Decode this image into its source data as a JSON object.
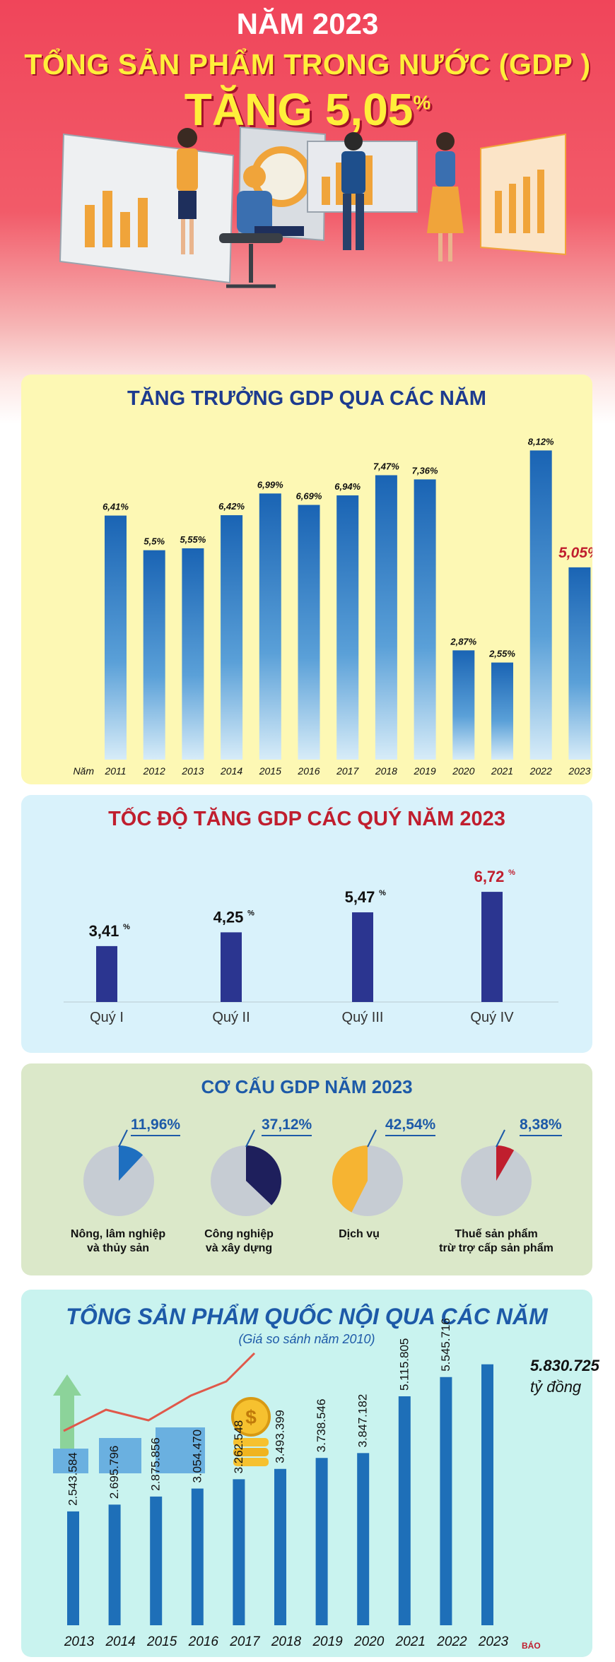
{
  "header": {
    "year_line": "NĂM 2023",
    "title": "TỔNG SẢN PHẨM TRONG NƯỚC (GDP )",
    "growth_text": "TĂNG 5,05",
    "growth_unit": "%"
  },
  "colors": {
    "header_bg": "#f0455a",
    "title_yellow": "#ffef3a",
    "bar_blue": "#1e6fb8",
    "quarter_bar": "#2b3590",
    "highlight_red": "#c01e2e",
    "pie_grey": "#c6ccd3"
  },
  "panel_annual": {
    "title": "TĂNG TRƯỞNG GDP QUA CÁC NĂM",
    "axis_prefix": "Năm"
  },
  "panel_quarter": {
    "title": "TỐC ĐỘ TĂNG GDP CÁC QUÝ NĂM 2023"
  },
  "panel_structure": {
    "title": "CƠ CẤU GDP NĂM 2023"
  },
  "panel_output": {
    "title": "TỔNG SẢN PHẨM QUỐC NỘI QUA CÁC NĂM",
    "subtitle": "(Giá so sánh năm 2010)",
    "highlight_value": "5.830.725",
    "highlight_unit": "tỷ đồng"
  },
  "logo": "BÁO",
  "chart_data": [
    {
      "type": "bar",
      "title": "TĂNG TRƯỞNG GDP QUA CÁC NĂM",
      "categories": [
        "2011",
        "2012",
        "2013",
        "2014",
        "2015",
        "2016",
        "2017",
        "2018",
        "2019",
        "2020",
        "2021",
        "2022",
        "2023"
      ],
      "values": [
        6.41,
        5.5,
        5.55,
        6.42,
        6.99,
        6.69,
        6.94,
        7.47,
        7.36,
        2.87,
        2.55,
        8.12,
        5.05
      ],
      "labels": [
        "6,41%",
        "5,5%",
        "5,55%",
        "6,42%",
        "6,99%",
        "6,69%",
        "6,94%",
        "7,47%",
        "7,36%",
        "2,87%",
        "2,55%",
        "8,12%",
        "5,05%"
      ],
      "xlabel": "Năm",
      "ylabel": "",
      "ylim": [
        0,
        8.5
      ],
      "grid": false
    },
    {
      "type": "bar",
      "title": "TỐC ĐỘ TĂNG GDP CÁC QUÝ NĂM 2023",
      "categories": [
        "Quý I",
        "Quý II",
        "Quý III",
        "Quý IV"
      ],
      "values": [
        3.41,
        4.25,
        5.47,
        6.72
      ],
      "labels": [
        "3,41",
        "4,25",
        "5,47",
        "6,72"
      ],
      "unit": "%",
      "ylim": [
        0,
        7.5
      ],
      "grid": false
    },
    {
      "type": "pie",
      "title": "CƠ CẤU GDP NĂM 2023",
      "slices": [
        {
          "name": "Nông, lâm nghiệp và thủy sản",
          "line1": "Nông, lâm nghiệp",
          "line2": "và thủy sản",
          "value": 11.96,
          "label": "11,96%",
          "color": "#1e6fc0"
        },
        {
          "name": "Công nghiệp và xây dựng",
          "line1": "Công nghiệp",
          "line2": "và xây dựng",
          "value": 37.12,
          "label": "37,12%",
          "color": "#1e1f5c"
        },
        {
          "name": "Dịch vụ",
          "line1": "Dịch vụ",
          "line2": "",
          "value": 42.54,
          "label": "42,54%",
          "color": "#f6b432"
        },
        {
          "name": "Thuế sản phẩm trừ trợ cấp sản phẩm",
          "line1": "Thuế sản phẩm",
          "line2": "trừ trợ cấp sản phẩm",
          "value": 8.38,
          "label": "8,38%",
          "color": "#c01e2e"
        }
      ]
    },
    {
      "type": "bar",
      "title": "TỔNG SẢN PHẨM QUỐC NỘI QUA CÁC NĂM",
      "subtitle": "(Giá so sánh năm 2010)",
      "categories": [
        "2013",
        "2014",
        "2015",
        "2016",
        "2017",
        "2018",
        "2019",
        "2020",
        "2021",
        "2022",
        "2023"
      ],
      "values": [
        2543584,
        2695796,
        2875856,
        3054470,
        3262548,
        3493399,
        3738546,
        3847182,
        5115805,
        5545716,
        5830725
      ],
      "labels": [
        "2.543.584",
        "2.695.796",
        "2.875.856",
        "3.054.470",
        "3.262.548",
        "3.493.399",
        "3.738.546",
        "3.847.182",
        "5.115.805",
        "5.545.716",
        "5.830.725"
      ],
      "unit": "tỷ đồng",
      "ylim": [
        0,
        6000000
      ],
      "grid": false
    }
  ]
}
